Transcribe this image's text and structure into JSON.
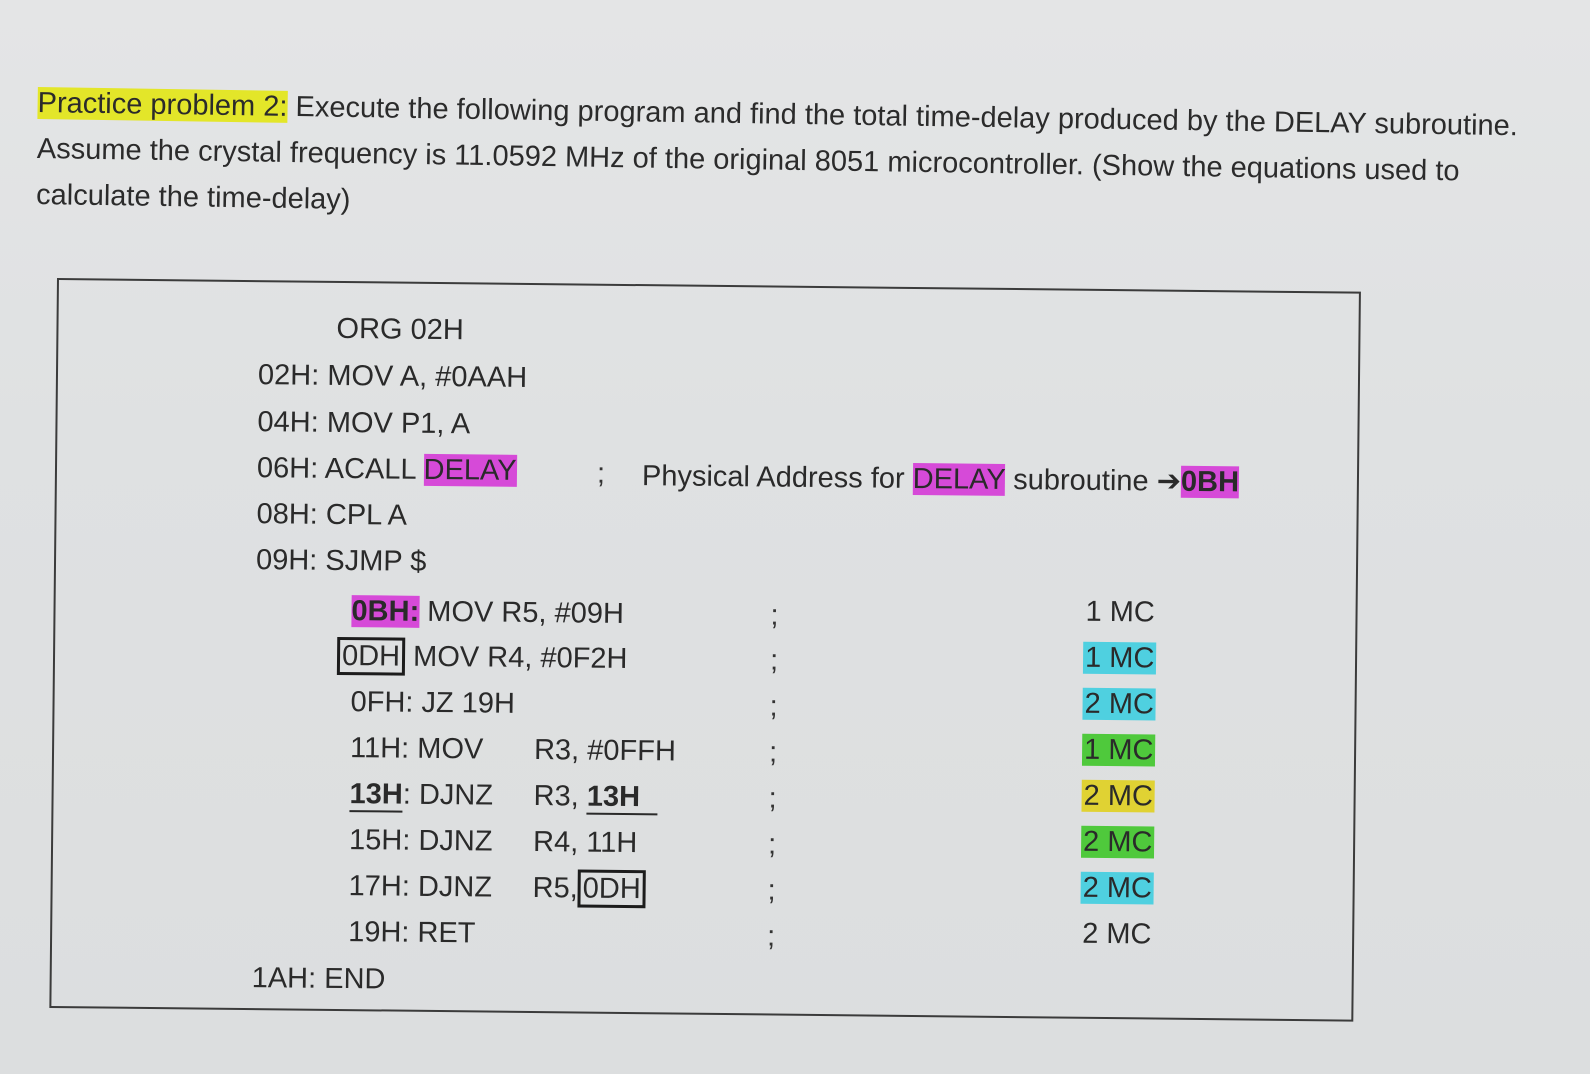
{
  "problem": {
    "label": "Practice problem 2:",
    "text": " Execute the following program and find the total time-delay produced by the DELAY subroutine. Assume the crystal frequency is 11.0592 MHz of the original 8051 microcontroller. (Show the equations used to calculate the time-delay)"
  },
  "code": {
    "org": "ORG 02H",
    "l02": "02H: MOV A, #0AAH",
    "l04": "04H: MOV P1, A",
    "l06_prefix": "06H: ACALL ",
    "l06_delay": "DELAY",
    "comment_semi": ";",
    "comment_text": "Physical Address for ",
    "comment_delay": "DELAY",
    "comment_tail": " subroutine ",
    "comment_arrow": "➔",
    "comment_addr": "0BH",
    "l08": "08H: CPL A",
    "l09": "09H: SJMP $",
    "l0B_addr": "0BH:",
    "l0B_instr": " MOV R5, #09H",
    "l0D_addr": "0DH",
    "l0D_instr": " MOV R4, #0F2H",
    "l0F": "0FH: JZ 19H",
    "l11_a": "11H: MOV",
    "l11_b": "R3, #0FFH",
    "l13_addr": "13H",
    "l13_a": ": DJNZ",
    "l13_b": "R3, ",
    "l13_target": "13H",
    "l15_a": "15H: DJNZ",
    "l15_b": "R4, 11H",
    "l17_a": "17H: DJNZ",
    "l17_b": "R5,",
    "l17_target": "0DH",
    "l19": "19H: RET",
    "l1A": "1AH: END"
  },
  "cycles": [
    "1 MC",
    "1 MC",
    "2 MC",
    "1 MC",
    "2 MC",
    "2 MC",
    "2 MC",
    "2 MC"
  ],
  "semicolons": [
    ";",
    ";",
    ";",
    ";",
    ";",
    ";",
    ";",
    ";"
  ],
  "colors": {
    "yellow": "#e3e629",
    "magenta": "#d64ad8",
    "cyan": "#4fd0e0",
    "green": "#4fc93c",
    "gold": "#e0d233"
  }
}
